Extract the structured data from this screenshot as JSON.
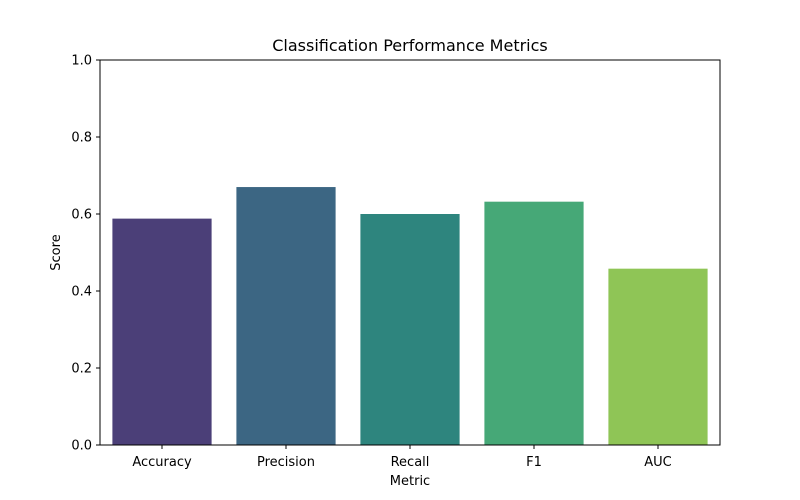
{
  "chart_data": {
    "type": "bar",
    "title": "Classification Performance Metrics",
    "xlabel": "Metric",
    "ylabel": "Score",
    "categories": [
      "Accuracy",
      "Precision",
      "Recall",
      "F1",
      "AUC"
    ],
    "values": [
      0.588,
      0.67,
      0.6,
      0.632,
      0.458
    ],
    "colors": [
      "#4b3f78",
      "#3c6683",
      "#2e857e",
      "#46a877",
      "#8fc556"
    ],
    "ylim": [
      0,
      1.0
    ],
    "yticks": [
      0.0,
      0.2,
      0.4,
      0.6,
      0.8,
      1.0
    ],
    "ytick_labels": [
      "0.0",
      "0.2",
      "0.4",
      "0.6",
      "0.8",
      "1.0"
    ],
    "grid": false,
    "legend": "none"
  }
}
